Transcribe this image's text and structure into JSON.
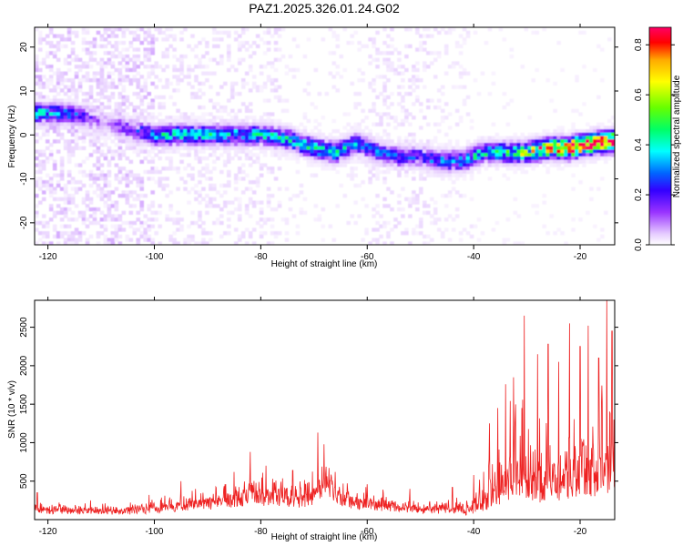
{
  "title": "PAZ1.2025.326.01.24.G02",
  "chart_data": [
    {
      "type": "heatmap",
      "xlabel": "Height of straight line (km)",
      "ylabel": "Frequency (Hz)",
      "xlim": [
        -122.5,
        -13.5
      ],
      "ylim": [
        -25,
        24.5
      ],
      "xticks": [
        -120,
        -100,
        -80,
        -60,
        -40,
        -20
      ],
      "xtick_labels": [
        "-120",
        "-100",
        "-80",
        "-60",
        "-40",
        "-20"
      ],
      "yticks": [
        -20,
        -10,
        0,
        10,
        20
      ],
      "ytick_labels": [
        "-20",
        "-10",
        "0",
        "10",
        "20"
      ],
      "colorbar": {
        "label": "Normalized spectral amplitude",
        "range": [
          0.0,
          0.87
        ],
        "ticks": [
          0.0,
          0.2,
          0.4,
          0.6,
          0.8
        ],
        "tick_labels": [
          "0.0",
          "0.2",
          "0.4",
          "0.6",
          "0.8"
        ],
        "colors": [
          "#ffffff",
          "#e6ccff",
          "#9933ff",
          "#3300ff",
          "#0066ff",
          "#00ffff",
          "#00ff66",
          "#66ff00",
          "#ffff00",
          "#ffaa00",
          "#ff0000",
          "#ff0066"
        ]
      },
      "ridge": {
        "x": [
          -121,
          -116,
          -110,
          -104,
          -100,
          -95,
          -90,
          -85,
          -80,
          -75,
          -70,
          -66,
          -62,
          -58,
          -54,
          -50,
          -46,
          -42,
          -38,
          -34,
          -30,
          -26,
          -22,
          -18,
          -14
        ],
        "freq": [
          5,
          5,
          3,
          1,
          0,
          0,
          0,
          0,
          0,
          -1,
          -3,
          -4,
          -2,
          -4,
          -5,
          -5,
          -6,
          -6,
          -4,
          -4,
          -4,
          -3,
          -3,
          -2,
          -1.5
        ],
        "amplitude": [
          0.3,
          0.25,
          0.08,
          0.15,
          0.3,
          0.35,
          0.35,
          0.32,
          0.32,
          0.32,
          0.35,
          0.35,
          0.28,
          0.25,
          0.22,
          0.2,
          0.25,
          0.28,
          0.35,
          0.4,
          0.5,
          0.65,
          0.8,
          0.85,
          0.82
        ]
      }
    },
    {
      "type": "line",
      "xlabel": "Height of straight line (km)",
      "ylabel": "SNR (10 * v/v)",
      "xlim": [
        -122.5,
        -13.5
      ],
      "ylim": [
        0,
        2850
      ],
      "xticks": [
        -120,
        -100,
        -80,
        -60,
        -40,
        -20
      ],
      "xtick_labels": [
        "-120",
        "-100",
        "-80",
        "-60",
        "-40",
        "-20"
      ],
      "yticks": [
        500,
        1000,
        1500,
        2000,
        2500
      ],
      "ytick_labels": [
        "500",
        "1000",
        "1500",
        "2000",
        "2500"
      ],
      "series": [
        {
          "name": "SNR",
          "color": "#ee2222",
          "envelope_x": [
            -122.5,
            -115,
            -110,
            -104,
            -100,
            -96,
            -92,
            -88,
            -84,
            -81,
            -78,
            -74,
            -70,
            -68,
            -66,
            -62,
            -58,
            -54,
            -50,
            -46,
            -43,
            -41,
            -39,
            -37,
            -35,
            -33,
            -31,
            -29,
            -27,
            -25,
            -23,
            -21,
            -19,
            -17,
            -15.5,
            -13.5
          ],
          "baseline": [
            160,
            150,
            140,
            150,
            180,
            220,
            260,
            300,
            360,
            420,
            380,
            320,
            400,
            700,
            420,
            280,
            240,
            200,
            180,
            170,
            190,
            220,
            320,
            550,
            800,
            950,
            1050,
            900,
            850,
            900,
            1000,
            1050,
            1100,
            1200,
            1300,
            1300
          ],
          "peaks": [
            {
              "x": -122,
              "y": 350
            },
            {
              "x": -112,
              "y": 250
            },
            {
              "x": -101,
              "y": 320
            },
            {
              "x": -95,
              "y": 500
            },
            {
              "x": -85,
              "y": 620
            },
            {
              "x": -82,
              "y": 880
            },
            {
              "x": -79,
              "y": 700
            },
            {
              "x": -74,
              "y": 640
            },
            {
              "x": -69.3,
              "y": 1130
            },
            {
              "x": -66,
              "y": 620
            },
            {
              "x": -60,
              "y": 460
            },
            {
              "x": -52,
              "y": 400
            },
            {
              "x": -44,
              "y": 420
            },
            {
              "x": -40,
              "y": 580
            },
            {
              "x": -37,
              "y": 1250
            },
            {
              "x": -35.5,
              "y": 1450
            },
            {
              "x": -34,
              "y": 1760
            },
            {
              "x": -32.5,
              "y": 1850
            },
            {
              "x": -30.5,
              "y": 2650
            },
            {
              "x": -28,
              "y": 2150
            },
            {
              "x": -26,
              "y": 2280
            },
            {
              "x": -24,
              "y": 2050
            },
            {
              "x": -22,
              "y": 2550
            },
            {
              "x": -20,
              "y": 2250
            },
            {
              "x": -18.5,
              "y": 2520
            },
            {
              "x": -16.5,
              "y": 2100
            },
            {
              "x": -15,
              "y": 2850
            },
            {
              "x": -14,
              "y": 2450
            }
          ]
        }
      ]
    }
  ]
}
